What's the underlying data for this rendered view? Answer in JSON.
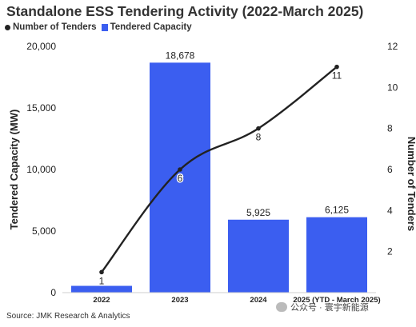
{
  "chart_data": {
    "type": "bar",
    "title": "Standalone ESS Tendering Activity (2022-March 2025)",
    "categories": [
      "2022",
      "2023",
      "2024",
      "2025 (YTD - March 2025)"
    ],
    "series": [
      {
        "name": "Tendered Capacity",
        "type": "bar",
        "axis": "left",
        "values": [
          550,
          18678,
          5925,
          6125
        ],
        "labels": [
          "",
          "18,678",
          "5,925",
          "6,125"
        ]
      },
      {
        "name": "Number of Tenders",
        "type": "line",
        "axis": "right",
        "values": [
          1,
          6,
          8,
          11
        ],
        "labels": [
          "1",
          "6",
          "8",
          "11"
        ]
      }
    ],
    "ylabel": "Tendered Capacity (MW)",
    "y2label": "Number of Tenders",
    "ylim": [
      0,
      20000
    ],
    "y2lim": [
      0,
      12
    ],
    "yticks": [
      "0",
      "5,000",
      "10,000",
      "15,000",
      "20,000"
    ],
    "y2ticks": [
      "2",
      "4",
      "6",
      "8",
      "10",
      "12"
    ],
    "grid": false,
    "legend_position": "top-left",
    "colors": {
      "bar": "#3b5ef0",
      "line": "#222222"
    }
  },
  "source": "Source: JMK Research & Analytics",
  "watermark": "公众号 · 寰宇新能源"
}
